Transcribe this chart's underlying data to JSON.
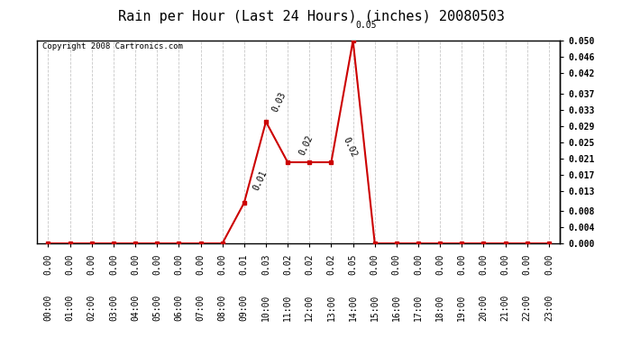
{
  "title": "Rain per Hour (Last 24 Hours) (inches) 20080503",
  "copyright_text": "Copyright 2008 Cartronics.com",
  "hours": [
    0,
    1,
    2,
    3,
    4,
    5,
    6,
    7,
    8,
    9,
    10,
    11,
    12,
    13,
    14,
    15,
    16,
    17,
    18,
    19,
    20,
    21,
    22,
    23
  ],
  "values": [
    0.0,
    0.0,
    0.0,
    0.0,
    0.0,
    0.0,
    0.0,
    0.0,
    0.0,
    0.01,
    0.03,
    0.02,
    0.02,
    0.02,
    0.05,
    0.0,
    0.0,
    0.0,
    0.0,
    0.0,
    0.0,
    0.0,
    0.0,
    0.0
  ],
  "line_color": "#cc0000",
  "marker_color": "#cc0000",
  "grid_color": "#c8c8c8",
  "bg_color": "#ffffff",
  "ylim": [
    0.0,
    0.05
  ],
  "yticks": [
    0.0,
    0.004,
    0.008,
    0.013,
    0.017,
    0.021,
    0.025,
    0.029,
    0.033,
    0.037,
    0.042,
    0.046,
    0.05
  ],
  "ytick_labels": [
    "0.000",
    "0.004",
    "0.008",
    "0.013",
    "0.017",
    "0.021",
    "0.025",
    "0.029",
    "0.033",
    "0.037",
    "0.042",
    "0.046",
    "0.050"
  ],
  "annotated_indices": [
    9,
    10,
    11,
    13,
    14
  ],
  "annotated_values": [
    0.01,
    0.03,
    0.02,
    0.02,
    0.05
  ],
  "annotated_labels": [
    "0.01",
    "0.03",
    "0.02",
    "0.02",
    "0.05"
  ],
  "annot_offsets_x": [
    6,
    4,
    8,
    8,
    2
  ],
  "annot_offsets_y": [
    10,
    8,
    6,
    4,
    10
  ],
  "annot_rotations": [
    65,
    65,
    65,
    -65,
    0
  ],
  "title_fontsize": 11,
  "label_fontsize": 7,
  "tick_fontsize": 7,
  "copyright_fontsize": 6.5
}
